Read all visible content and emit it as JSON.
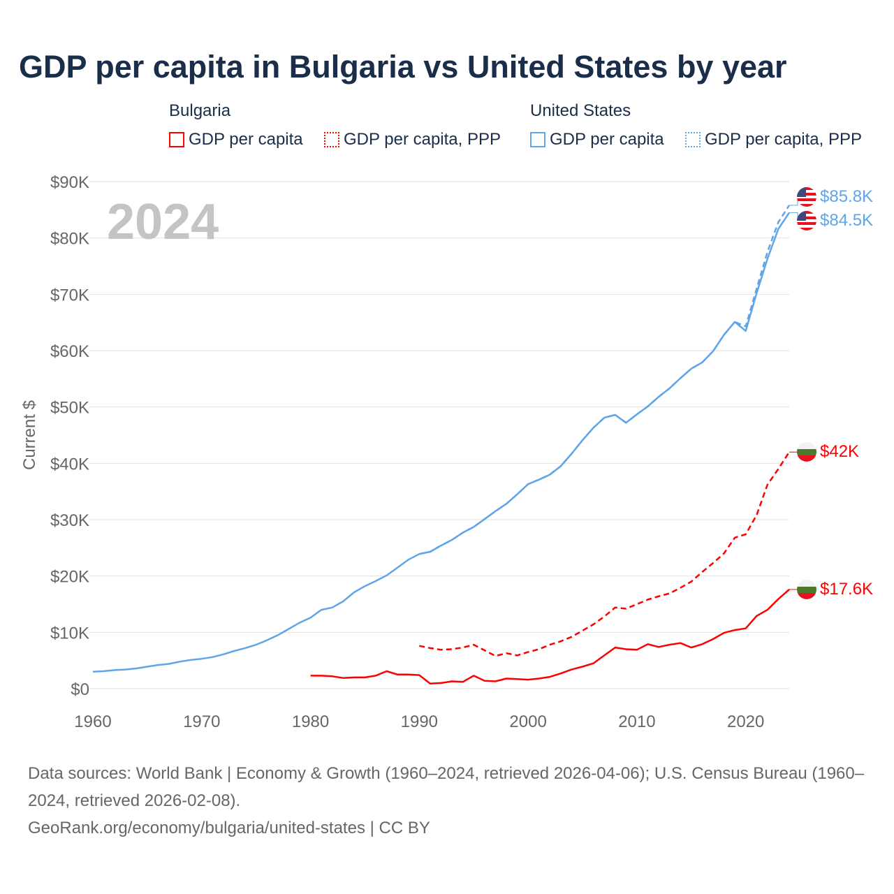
{
  "title": "GDP per capita in Bulgaria vs United States by year",
  "legend": {
    "groups": [
      {
        "name": "Bulgaria",
        "items": [
          "GDP per capita",
          "GDP per capita, PPP"
        ],
        "color": "#ff0000"
      },
      {
        "name": "United States",
        "items": [
          "GDP per capita",
          "GDP per capita, PPP"
        ],
        "color": "#5fa5e8"
      }
    ]
  },
  "year_watermark": "2024",
  "footer": {
    "sources": "Data sources: World Bank | Economy & Growth (1960–2024, retrieved 2026-04-06); U.S. Census Bureau (1960–2024, retrieved 2026-02-08).",
    "credit": "GeoRank.org/economy/bulgaria/united-states | CC BY"
  },
  "chart_data": {
    "type": "line",
    "title": "GDP per capita in Bulgaria vs United States by year",
    "ylabel": "Current $",
    "xlim": [
      1960,
      2024
    ],
    "ylim": [
      0,
      90000
    ],
    "xticks": [
      1960,
      1970,
      1980,
      1990,
      2000,
      2010,
      2020
    ],
    "xtick_labels": [
      "1960",
      "1970",
      "1980",
      "1990",
      "2000",
      "2010",
      "2020"
    ],
    "yticks": [
      0,
      10000,
      20000,
      30000,
      40000,
      50000,
      60000,
      70000,
      80000,
      90000
    ],
    "ytick_labels": [
      "$0",
      "$10K",
      "$20K",
      "$30K",
      "$40K",
      "$50K",
      "$60K",
      "$70K",
      "$80K",
      "$90K"
    ],
    "grid": true,
    "legend_position": "top",
    "series": [
      {
        "name": "United States GDP per capita",
        "color": "#5fa5e8",
        "dash": false,
        "start": 1960,
        "end_label": "$84.5K",
        "values": [
          3000,
          3100,
          3300,
          3400,
          3600,
          3900,
          4200,
          4400,
          4800,
          5100,
          5300,
          5600,
          6100,
          6700,
          7200,
          7800,
          8600,
          9500,
          10600,
          11700,
          12600,
          14000,
          14400,
          15500,
          17100,
          18200,
          19100,
          20100,
          21500,
          22900,
          23900,
          24300,
          25400,
          26400,
          27700,
          28700,
          30100,
          31500,
          32800,
          34500,
          36300,
          37100,
          38000,
          39500,
          41700,
          44100,
          46300,
          48100,
          48600,
          47200,
          48700,
          50100,
          51800,
          53300,
          55100,
          56800,
          57900,
          59900,
          62800,
          65100,
          63500,
          70200,
          76300,
          81600,
          84500
        ]
      },
      {
        "name": "United States GDP per capita, PPP",
        "color": "#5fa5e8",
        "dash": true,
        "start": 1990,
        "end_label": "$85.8K",
        "values": [
          23900,
          24300,
          25400,
          26400,
          27700,
          28700,
          30100,
          31500,
          32800,
          34500,
          36300,
          37100,
          38000,
          39500,
          41700,
          44100,
          46300,
          48100,
          48600,
          47200,
          48700,
          50100,
          51800,
          53300,
          55100,
          56800,
          57900,
          59900,
          62800,
          65100,
          64300,
          71000,
          77500,
          82800,
          85800
        ]
      },
      {
        "name": "Bulgaria GDP per capita",
        "color": "#ff0000",
        "dash": false,
        "start": 1980,
        "end_label": "$17.6K",
        "values": [
          2300,
          2300,
          2200,
          1900,
          2000,
          2000,
          2300,
          3100,
          2500,
          2500,
          2400,
          900,
          1000,
          1300,
          1200,
          2300,
          1400,
          1300,
          1800,
          1700,
          1600,
          1800,
          2100,
          2700,
          3400,
          3900,
          4500,
          5900,
          7300,
          7000,
          6900,
          7900,
          7400,
          7800,
          8100,
          7300,
          7900,
          8800,
          9900,
          10400,
          10700,
          12900,
          14000,
          15900,
          17600
        ]
      },
      {
        "name": "Bulgaria GDP per capita, PPP",
        "color": "#ff0000",
        "dash": true,
        "start": 1990,
        "end_label": "$42K",
        "values": [
          7600,
          7200,
          6900,
          7000,
          7300,
          7800,
          6800,
          5800,
          6300,
          5900,
          6500,
          7000,
          7800,
          8400,
          9200,
          10300,
          11400,
          12800,
          14400,
          14200,
          15000,
          15800,
          16400,
          16900,
          17900,
          19000,
          20700,
          22300,
          24000,
          26800,
          27400,
          30800,
          36200,
          39000,
          42000
        ]
      }
    ]
  }
}
